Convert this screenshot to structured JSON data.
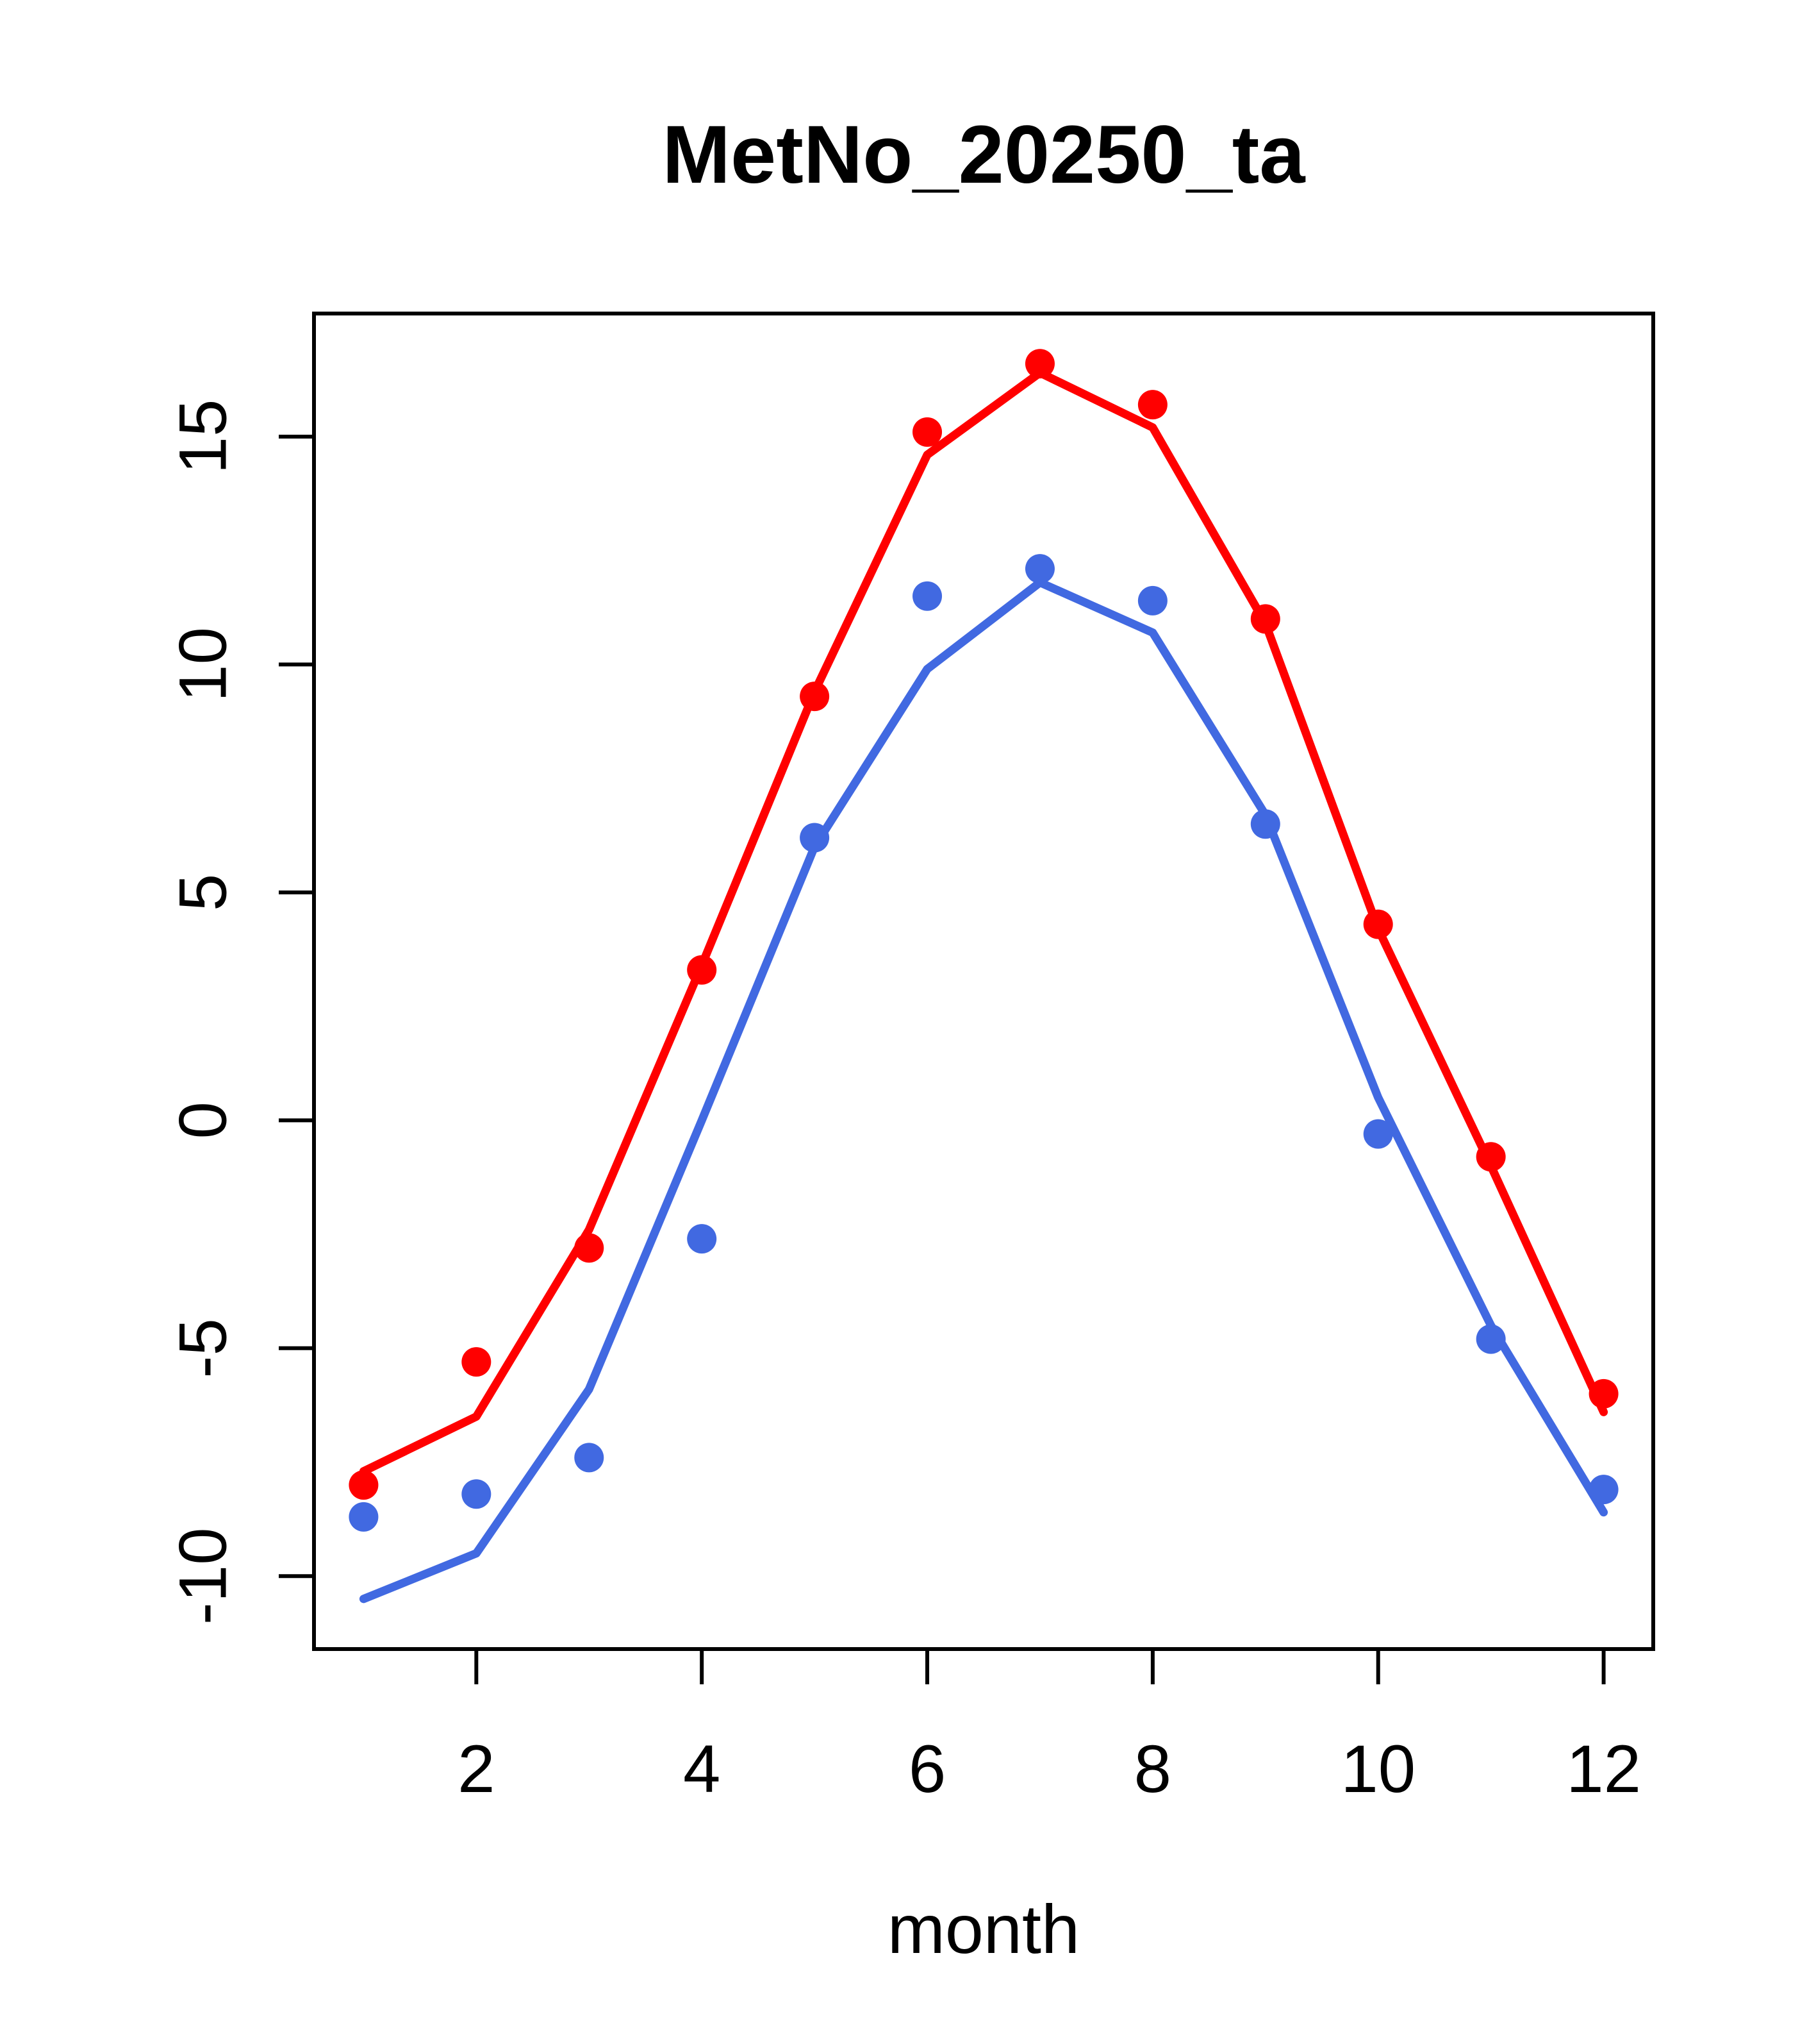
{
  "page": {
    "background": "#ffffff",
    "frame_color": "#000000",
    "text_color": "#000000"
  },
  "chart_data": {
    "type": "line",
    "title": "MetNo_20250_ta",
    "xlabel": "month",
    "ylabel": "",
    "x": [
      1,
      2,
      3,
      4,
      5,
      6,
      7,
      8,
      9,
      10,
      11,
      12
    ],
    "xticks": [
      2,
      4,
      6,
      8,
      10,
      12
    ],
    "yticks": [
      -10,
      -5,
      0,
      5,
      10,
      15
    ],
    "xlim": [
      0.56,
      12.44
    ],
    "ylim": [
      -11.6,
      17.7
    ],
    "grid": false,
    "legend_position": "none",
    "series": [
      {
        "name": "red-line",
        "style": "line",
        "color": "#ff0000",
        "values": [
          -7.7,
          -6.5,
          -2.4,
          3.4,
          9.4,
          14.6,
          16.4,
          15.2,
          10.9,
          4.2,
          -1.0,
          -6.4
        ]
      },
      {
        "name": "blue-line",
        "style": "line",
        "color": "#4169e1",
        "values": [
          -10.5,
          -9.5,
          -5.9,
          0.0,
          6.0,
          9.9,
          11.8,
          10.7,
          6.7,
          0.5,
          -4.5,
          -8.6
        ]
      },
      {
        "name": "red-points",
        "style": "points",
        "color": "#ff0000",
        "values": [
          -8.0,
          -5.3,
          -2.8,
          3.3,
          9.3,
          15.1,
          16.6,
          15.7,
          11.0,
          4.3,
          -0.8,
          -6.0
        ]
      },
      {
        "name": "blue-points",
        "style": "points",
        "color": "#4169e1",
        "values": [
          -8.7,
          -8.2,
          -7.4,
          -2.6,
          6.2,
          11.5,
          12.1,
          11.4,
          6.5,
          -0.3,
          -4.8,
          -8.1
        ]
      }
    ]
  }
}
